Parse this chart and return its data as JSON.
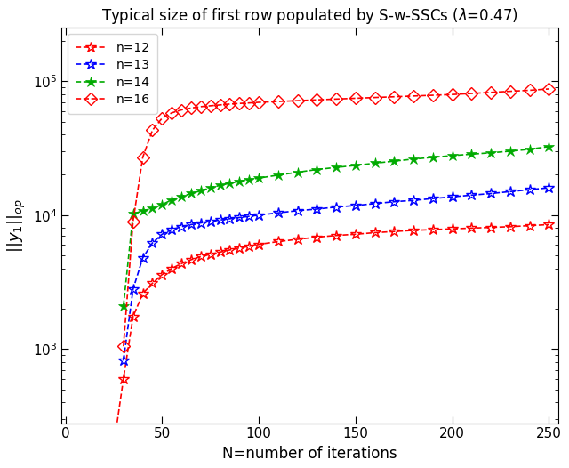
{
  "title": "Typical size of first row populated by S-w-SSCs (λ=0.47)",
  "xlabel": "N=number of iterations",
  "series": [
    {
      "label": "n=12",
      "color": "#ff0000",
      "marker": "star_open",
      "linestyle": "--",
      "x": [
        25,
        30,
        35,
        40,
        45,
        50,
        55,
        60,
        65,
        70,
        75,
        80,
        85,
        90,
        95,
        100,
        110,
        120,
        130,
        140,
        150,
        160,
        170,
        180,
        190,
        200,
        210,
        220,
        230,
        240,
        250
      ],
      "y": [
        190,
        600,
        1750,
        2600,
        3100,
        3600,
        4000,
        4350,
        4650,
        4900,
        5100,
        5300,
        5500,
        5700,
        5850,
        6050,
        6350,
        6600,
        6850,
        7050,
        7200,
        7400,
        7550,
        7700,
        7800,
        7900,
        8000,
        8100,
        8200,
        8350,
        8500
      ]
    },
    {
      "label": "n=13",
      "color": "#0000ff",
      "marker": "star_open",
      "linestyle": "--",
      "x": [
        30,
        35,
        40,
        45,
        50,
        55,
        60,
        65,
        70,
        75,
        80,
        85,
        90,
        95,
        100,
        110,
        120,
        130,
        140,
        150,
        160,
        170,
        180,
        190,
        200,
        210,
        220,
        230,
        240,
        250
      ],
      "y": [
        820,
        2800,
        4800,
        6200,
        7200,
        7800,
        8200,
        8500,
        8750,
        9000,
        9200,
        9400,
        9600,
        9800,
        10000,
        10400,
        10800,
        11100,
        11500,
        11800,
        12200,
        12600,
        12900,
        13300,
        13700,
        14100,
        14500,
        15000,
        15500,
        16000
      ]
    },
    {
      "label": "n=14",
      "color": "#00aa00",
      "marker": "asterisk",
      "linestyle": "--",
      "x": [
        30,
        35,
        40,
        45,
        50,
        55,
        60,
        65,
        70,
        75,
        80,
        85,
        90,
        95,
        100,
        110,
        120,
        130,
        140,
        150,
        160,
        170,
        180,
        190,
        200,
        210,
        220,
        230,
        240,
        250
      ],
      "y": [
        2100,
        10200,
        10800,
        11200,
        12000,
        13000,
        13800,
        14500,
        15200,
        16000,
        16700,
        17300,
        17900,
        18400,
        18900,
        19900,
        20900,
        21900,
        22700,
        23500,
        24400,
        25300,
        26200,
        27000,
        27800,
        28500,
        29200,
        30000,
        31000,
        32500
      ]
    },
    {
      "label": "n=16",
      "color": "#ff0000",
      "marker": "diamond_open",
      "linestyle": "--",
      "x": [
        30,
        35,
        40,
        45,
        50,
        55,
        60,
        65,
        70,
        75,
        80,
        85,
        90,
        95,
        100,
        110,
        120,
        130,
        140,
        150,
        160,
        170,
        180,
        190,
        200,
        210,
        220,
        230,
        240,
        250
      ],
      "y": [
        1050,
        9000,
        27000,
        43000,
        53000,
        58000,
        61000,
        63000,
        64500,
        65500,
        66500,
        67500,
        68200,
        68800,
        69500,
        70500,
        71500,
        72500,
        73500,
        74500,
        75500,
        76500,
        77500,
        78500,
        79500,
        81000,
        82500,
        84000,
        85500,
        87500
      ]
    }
  ],
  "xlim": [
    -2,
    255
  ],
  "ylim": [
    280,
    250000
  ],
  "xticks": [
    0,
    50,
    100,
    150,
    200,
    250
  ],
  "yticks": [
    1000,
    10000,
    100000
  ],
  "figsize": [
    6.4,
    5.26
  ],
  "dpi": 100
}
